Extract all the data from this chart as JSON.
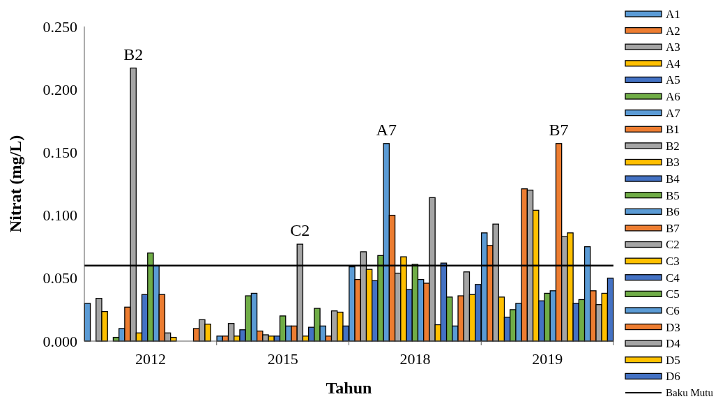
{
  "chart_data": {
    "type": "bar",
    "xlabel": "Tahun",
    "ylabel": "Nitrat (mg/L)",
    "categories": [
      "2012",
      "2015",
      "2018",
      "2019"
    ],
    "ylim": [
      0,
      0.25
    ],
    "yticks": [
      {
        "value": 0,
        "label": "0.000"
      },
      {
        "value": 0.05,
        "label": "0.050"
      },
      {
        "value": 0.1,
        "label": "0.100"
      },
      {
        "value": 0.15,
        "label": "0.150"
      },
      {
        "value": 0.2,
        "label": "0.200"
      },
      {
        "value": 0.25,
        "label": "0.250"
      }
    ],
    "grid": false,
    "legend": "right",
    "series": [
      {
        "name": "A1",
        "color": "#5b9bd5",
        "values": [
          0.03,
          0.004,
          0.059,
          0.086
        ]
      },
      {
        "name": "A2",
        "color": "#ed7d31",
        "values": [
          0,
          0.004,
          0.049,
          0.076
        ]
      },
      {
        "name": "A3",
        "color": "#a5a5a5",
        "values": [
          0.034,
          0.014,
          0.071,
          0.093
        ]
      },
      {
        "name": "A4",
        "color": "#ffc000",
        "values": [
          0.0235,
          0.004,
          0.057,
          0.035
        ]
      },
      {
        "name": "A5",
        "color": "#4472c4",
        "values": [
          0,
          0.009,
          0.048,
          0.019
        ]
      },
      {
        "name": "A6",
        "color": "#70ad47",
        "values": [
          0.003,
          0.036,
          0.068,
          0.025
        ]
      },
      {
        "name": "A7",
        "color": "#5b9bd5",
        "values": [
          0.01,
          0.038,
          0.157,
          0.03
        ]
      },
      {
        "name": "B1",
        "color": "#ed7d31",
        "values": [
          0.027,
          0.008,
          0.1,
          0.121
        ]
      },
      {
        "name": "B2",
        "color": "#a5a5a5",
        "values": [
          0.217,
          0.005,
          0.054,
          0.12
        ]
      },
      {
        "name": "B3",
        "color": "#ffc000",
        "values": [
          0.0065,
          0.004,
          0.067,
          0.104
        ]
      },
      {
        "name": "B4",
        "color": "#4472c4",
        "values": [
          0.037,
          0.004,
          0.041,
          0.032
        ]
      },
      {
        "name": "B5",
        "color": "#70ad47",
        "values": [
          0.07,
          0.02,
          0.061,
          0.038
        ]
      },
      {
        "name": "B6",
        "color": "#5b9bd5",
        "values": [
          0.06,
          0.012,
          0.049,
          0.04
        ]
      },
      {
        "name": "B7",
        "color": "#ed7d31",
        "values": [
          0.037,
          0.012,
          0.046,
          0.157
        ]
      },
      {
        "name": "C2",
        "color": "#a5a5a5",
        "values": [
          0.0065,
          0.077,
          0.114,
          0.083
        ]
      },
      {
        "name": "C3",
        "color": "#ffc000",
        "values": [
          0.003,
          0.004,
          0.013,
          0.086
        ]
      },
      {
        "name": "C4",
        "color": "#4472c4",
        "values": [
          0,
          0.011,
          0.062,
          0.03
        ]
      },
      {
        "name": "C5",
        "color": "#70ad47",
        "values": [
          0,
          0.026,
          0.035,
          0.033
        ]
      },
      {
        "name": "C6",
        "color": "#5b9bd5",
        "values": [
          0,
          0.012,
          0.012,
          0.075
        ]
      },
      {
        "name": "D3",
        "color": "#ed7d31",
        "values": [
          0.01,
          0.004,
          0.036,
          0.04
        ]
      },
      {
        "name": "D4",
        "color": "#a5a5a5",
        "values": [
          0.017,
          0.024,
          0.055,
          0.029
        ]
      },
      {
        "name": "D5",
        "color": "#ffc000",
        "values": [
          0.0135,
          0.023,
          0.037,
          0.038
        ]
      },
      {
        "name": "D6",
        "color": "#4472c4",
        "values": [
          0,
          0.012,
          0.045,
          0.05
        ]
      }
    ],
    "ref_lines": [
      {
        "axis": "y",
        "value": 0.06,
        "label": "Baku Mutu",
        "color": "#000000"
      }
    ],
    "annotations": [
      "B2",
      "C2",
      "A7",
      "B7"
    ]
  }
}
